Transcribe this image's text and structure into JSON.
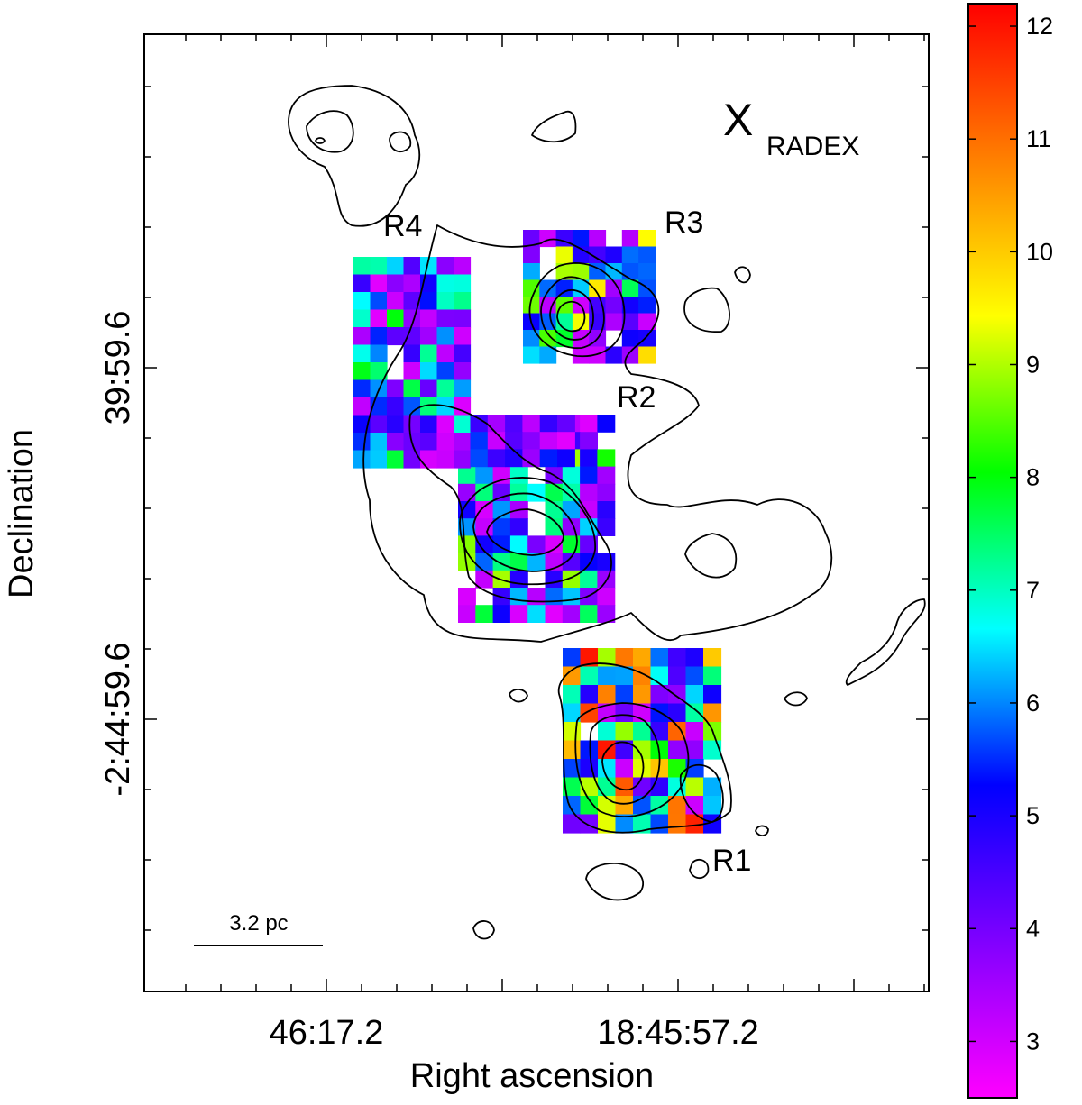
{
  "chart_data": {
    "type": "heatmap",
    "title": "X",
    "title_subscript": "RADEX",
    "xlabel": "Right ascension",
    "ylabel": "Declination",
    "xticks": [
      "46:17.2",
      "18:45:57.2"
    ],
    "yticks": [
      "39:59.6",
      "-2:44:59.6"
    ],
    "colorbar": {
      "range": [
        2.5,
        12.2
      ],
      "ticks": [
        "3",
        "4",
        "5",
        "6",
        "7",
        "8",
        "9",
        "10",
        "11",
        "12"
      ],
      "colormap": [
        "#ff00ff",
        "#8000ff",
        "#0000ff",
        "#00ffff",
        "#00ff00",
        "#ffff00",
        "#ff8000",
        "#ff0000"
      ]
    },
    "regions": [
      {
        "label": "R1",
        "cols": 9,
        "rows": 10,
        "vmin": 3,
        "vmax": 12
      },
      {
        "label": "R2",
        "cols": 9,
        "rows": 12,
        "vmin": 2.8,
        "vmax": 9
      },
      {
        "label": "R3",
        "cols": 8,
        "rows": 8,
        "vmin": 3,
        "vmax": 10
      },
      {
        "label": "R4",
        "cols": 7,
        "rows": 12,
        "vmin": 2.8,
        "vmax": 8
      }
    ],
    "scale_bar": "3.2 pc"
  }
}
